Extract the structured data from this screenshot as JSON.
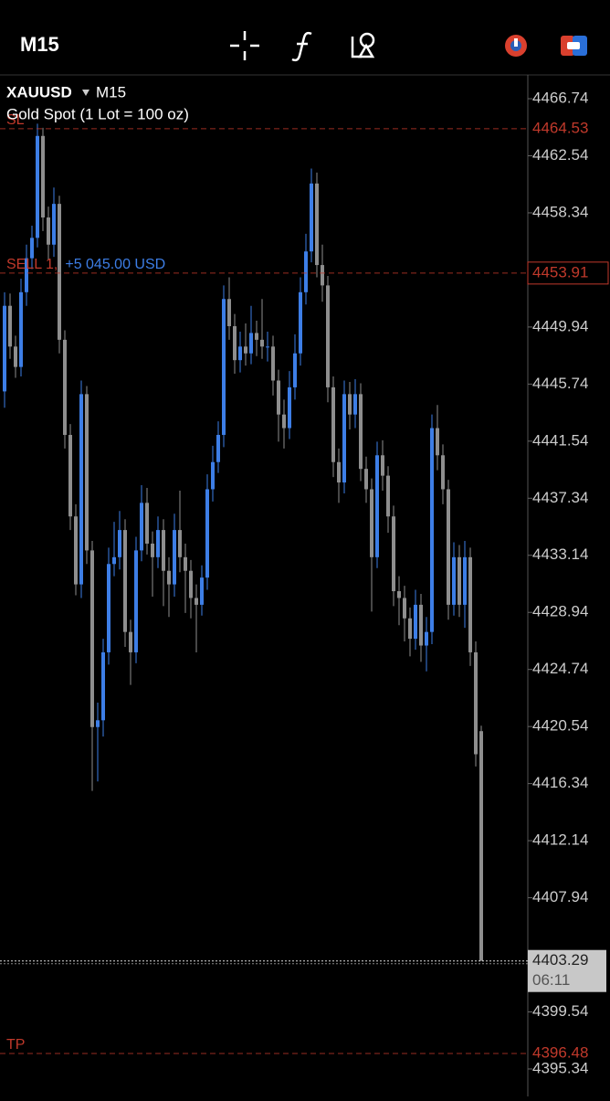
{
  "toolbar": {
    "timeframe": "M15"
  },
  "chart_data": {
    "type": "candlestick",
    "symbol": "XAUUSD",
    "timeframe": "M15",
    "description": "Gold Spot (1 Lot = 100 oz)",
    "open": [
      4445.2,
      4451.5,
      4448.5,
      4447.0,
      4452.5,
      4455.0,
      4456.5,
      4464.0,
      4458.0,
      4456.0,
      4459.0,
      4449.0,
      4442.0,
      4436.0,
      4431.0,
      4445.0,
      4433.5,
      4420.5,
      4421.0,
      4426.0,
      4432.5,
      4433.0,
      4435.0,
      4427.5,
      4426.0,
      4433.5,
      4437.0,
      4434.0,
      4433.0,
      4435.0,
      4432.0,
      4431.0,
      4435.0,
      4433.0,
      4432.0,
      4430.0,
      4429.5,
      4431.5,
      4438.0,
      4440.0,
      4442.0,
      4452.0,
      4450.0,
      4447.5,
      4448.5,
      4448.0,
      4449.5,
      4449.0,
      4448.5,
      4448.5,
      4446.0,
      4443.5,
      4442.5,
      4445.5,
      4448.0,
      4452.5,
      4455.5,
      4460.5,
      4454.5,
      4453.0,
      4445.5,
      4440.0,
      4438.5,
      4445.0,
      4443.5,
      4445.0,
      4439.5,
      4438.0,
      4433.0,
      4440.5,
      4439.0,
      4436.0,
      4430.5,
      4430.0,
      4428.5,
      4427.0,
      4429.5,
      4426.5,
      4427.5,
      4442.5,
      4440.5,
      4438.0,
      4429.5,
      4433.0,
      4429.5,
      4433.0,
      4426.0,
      4420.2
    ],
    "high": [
      4452.5,
      4452.4,
      4449.3,
      4453.5,
      4456.0,
      4457.4,
      4464.9,
      4464.6,
      4458.8,
      4460.2,
      4459.6,
      4449.7,
      4442.8,
      4436.9,
      4446.0,
      4445.6,
      4434.2,
      4422.3,
      4427.0,
      4433.7,
      4435.6,
      4436.4,
      4435.8,
      4428.4,
      4434.5,
      4438.3,
      4438.1,
      4434.9,
      4436.0,
      4435.8,
      4433.0,
      4436.2,
      4437.9,
      4434.0,
      4432.8,
      4431.0,
      4432.4,
      4439.1,
      4441.2,
      4443.0,
      4453.0,
      4453.6,
      4450.9,
      4449.6,
      4450.2,
      4451.5,
      4450.4,
      4452.0,
      4449.6,
      4449.3,
      4446.8,
      4444.6,
      4446.7,
      4449.4,
      4453.6,
      4456.8,
      4461.6,
      4461.3,
      4456.0,
      4453.7,
      4446.3,
      4441.0,
      4446.0,
      4445.9,
      4446.1,
      4445.8,
      4440.4,
      4438.8,
      4441.5,
      4441.6,
      4439.7,
      4436.8,
      4431.6,
      4430.9,
      4429.3,
      4430.6,
      4430.3,
      4428.6,
      4443.5,
      4444.2,
      4441.3,
      4438.7,
      4434.1,
      4433.9,
      4434.2,
      4433.7,
      4426.8,
      4420.6
    ],
    "low": [
      4444.0,
      4447.6,
      4446.2,
      4446.3,
      4451.5,
      4454.2,
      4455.8,
      4457.0,
      4454.9,
      4455.1,
      4448.0,
      4441.0,
      4435.0,
      4430.2,
      4430.0,
      4432.5,
      4415.8,
      4416.5,
      4419.8,
      4425.1,
      4431.6,
      4432.1,
      4426.4,
      4423.6,
      4425.2,
      4432.7,
      4433.2,
      4430.1,
      4432.2,
      4429.4,
      4428.6,
      4430.1,
      4431.9,
      4428.9,
      4428.5,
      4426.0,
      4428.7,
      4430.6,
      4437.1,
      4439.2,
      4441.1,
      4449.0,
      4446.5,
      4446.6,
      4447.1,
      4447.2,
      4447.8,
      4447.6,
      4447.4,
      4444.9,
      4441.5,
      4441.0,
      4441.7,
      4444.6,
      4447.1,
      4451.6,
      4454.7,
      4453.6,
      4451.8,
      4444.4,
      4438.9,
      4437.0,
      4437.7,
      4442.4,
      4442.5,
      4438.6,
      4437.0,
      4429.0,
      4432.2,
      4437.9,
      4434.8,
      4429.4,
      4428.0,
      4426.8,
      4425.7,
      4426.2,
      4425.3,
      4424.6,
      4426.6,
      4439.4,
      4436.9,
      4428.4,
      4428.7,
      4428.6,
      4427.8,
      4425.0,
      4417.6,
      4403.3
    ],
    "close": [
      4451.5,
      4448.5,
      4447.0,
      4452.5,
      4455.0,
      4456.5,
      4464.0,
      4458.0,
      4456.0,
      4459.0,
      4449.0,
      4442.0,
      4436.0,
      4431.0,
      4445.0,
      4433.5,
      4420.5,
      4421.0,
      4426.0,
      4432.5,
      4433.0,
      4435.0,
      4427.5,
      4426.0,
      4433.5,
      4437.0,
      4434.0,
      4433.0,
      4435.0,
      4432.0,
      4431.0,
      4435.0,
      4433.0,
      4432.0,
      4430.0,
      4429.5,
      4431.5,
      4438.0,
      4440.0,
      4442.0,
      4452.0,
      4450.0,
      4447.5,
      4448.5,
      4448.0,
      4449.5,
      4449.0,
      4448.5,
      4448.5,
      4446.0,
      4443.5,
      4442.5,
      4445.5,
      4448.0,
      4452.5,
      4455.5,
      4460.5,
      4454.5,
      4453.0,
      4445.5,
      4440.0,
      4438.5,
      4445.0,
      4443.5,
      4445.0,
      4439.5,
      4438.0,
      4433.0,
      4440.5,
      4439.0,
      4436.0,
      4430.5,
      4430.0,
      4428.5,
      4427.0,
      4429.5,
      4426.5,
      4427.5,
      4442.5,
      4440.5,
      4438.0,
      4429.5,
      4433.0,
      4429.5,
      4433.0,
      4426.0,
      4418.5,
      4403.3
    ],
    "up_color": "#3d7ee6",
    "down_color": "#8e8e8e",
    "ylim": [
      4393.32,
      4468.49
    ],
    "yticks": [
      4466.74,
      4462.54,
      4458.34,
      4449.94,
      4445.74,
      4441.54,
      4437.34,
      4433.14,
      4428.94,
      4424.74,
      4420.54,
      4416.34,
      4412.14,
      4407.94,
      4399.54,
      4395.34
    ],
    "price_lines": [
      {
        "label": "SL",
        "price": 4464.53,
        "color": "#c0392b"
      },
      {
        "label": "SELL 1,",
        "profit": "+5 045.00 USD",
        "price": 4453.91,
        "color": "#c0392b",
        "profit_color": "#3d7ee6"
      },
      {
        "label": "TP",
        "price": 4396.48,
        "color": "#c0392b"
      }
    ],
    "current_price": 4403.29,
    "countdown": "06:11"
  }
}
